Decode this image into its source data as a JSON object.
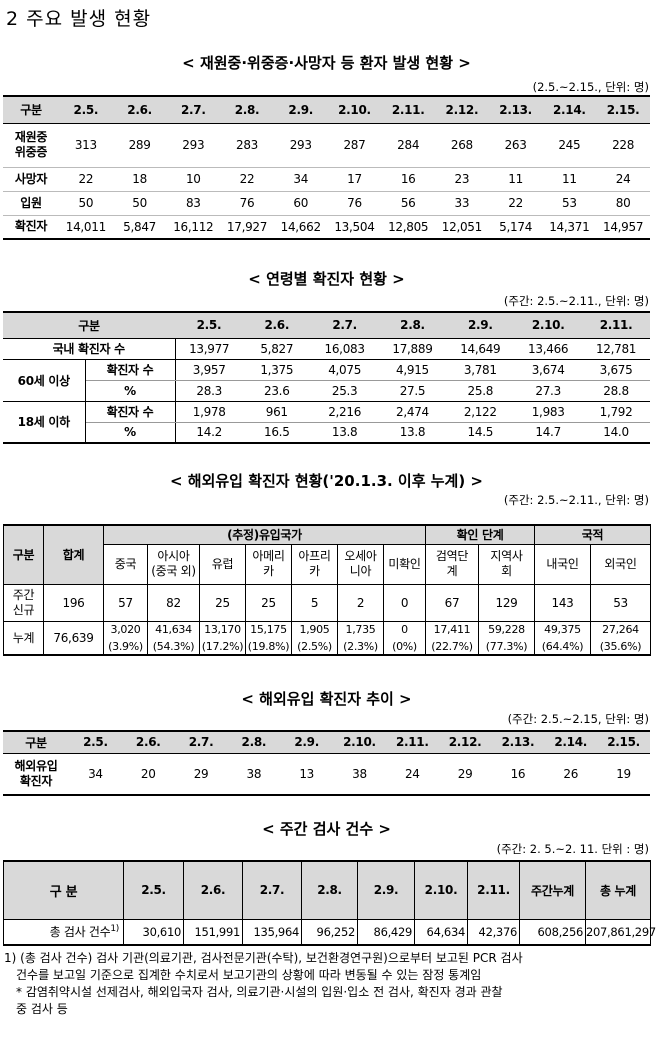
{
  "page_title": "2 주요 발생 현황",
  "t1": {
    "title": "< 재원중·위중증·사망자 등 환자 발생 현황 >",
    "unit": "(2.5.~2.15., 단위: 명)",
    "head": [
      "구분",
      "2.5.",
      "2.6.",
      "2.7.",
      "2.8.",
      "2.9.",
      "2.10.",
      "2.11.",
      "2.12.",
      "2.13.",
      "2.14.",
      "2.15."
    ],
    "rows": [
      {
        "label": "재원중\n위중증",
        "values": [
          "313",
          "289",
          "293",
          "283",
          "293",
          "287",
          "284",
          "268",
          "263",
          "245",
          "228"
        ]
      },
      {
        "label": "사망자",
        "values": [
          "22",
          "18",
          "10",
          "22",
          "34",
          "17",
          "16",
          "23",
          "11",
          "11",
          "24"
        ]
      },
      {
        "label": "입원",
        "values": [
          "50",
          "50",
          "83",
          "76",
          "60",
          "76",
          "56",
          "33",
          "22",
          "53",
          "80"
        ]
      },
      {
        "label": "확진자",
        "values": [
          "14,011",
          "5,847",
          "16,112",
          "17,927",
          "14,662",
          "13,504",
          "12,805",
          "12,051",
          "5,174",
          "14,371",
          "14,957"
        ]
      }
    ]
  },
  "t2": {
    "title": "< 연령별 확진자 현황 >",
    "unit": "(주간: 2.5.~2.11., 단위: 명)",
    "head": [
      "구분",
      "2.5.",
      "2.6.",
      "2.7.",
      "2.8.",
      "2.9.",
      "2.10.",
      "2.11."
    ],
    "total_label": "국내 확진자 수",
    "total": [
      "13,977",
      "5,827",
      "16,083",
      "17,889",
      "14,649",
      "13,466",
      "12,781"
    ],
    "g60_label": "60세 이상",
    "g18_label": "18세 이하",
    "sub_count": "확진자 수",
    "sub_pct": "%",
    "g60_count": [
      "3,957",
      "1,375",
      "4,075",
      "4,915",
      "3,781",
      "3,674",
      "3,675"
    ],
    "g60_pct": [
      "28.3",
      "23.6",
      "25.3",
      "27.5",
      "25.8",
      "27.3",
      "28.8"
    ],
    "g18_count": [
      "1,978",
      "961",
      "2,216",
      "2,474",
      "2,122",
      "1,983",
      "1,792"
    ],
    "g18_pct": [
      "14.2",
      "16.5",
      "13.8",
      "13.8",
      "14.5",
      "14.7",
      "14.0"
    ]
  },
  "t3": {
    "title": "< 해외유입 확진자 현황('20.1.3. 이후 누계) >",
    "unit": "(주간: 2.5.~2.11., 단위: 명)",
    "h_gubun": "구분",
    "h_total": "합계",
    "h_country": "(추정)유입국가",
    "h_stage": "확인 단계",
    "h_nation": "국적",
    "sub": [
      "중국",
      "아시아\n(중국 외)",
      "유럽",
      "아메리\n카",
      "아프리\n카",
      "오세아\n니아",
      "미확인",
      "검역단\n계",
      "지역사\n회",
      "내국인",
      "외국인"
    ],
    "week_label": "주간\n신규",
    "week_total": "196",
    "week": [
      "57",
      "82",
      "25",
      "25",
      "5",
      "2",
      "0",
      "67",
      "129",
      "143",
      "53"
    ],
    "cum_label": "누계",
    "cum_total": "76,639",
    "cum": [
      "3,020",
      "41,634",
      "13,170",
      "15,175",
      "1,905",
      "1,735",
      "0",
      "17,411",
      "59,228",
      "49,375",
      "27,264"
    ],
    "cum_pct": [
      "(3.9%)",
      "(54.3%)",
      "(17.2%)",
      "(19.8%)",
      "(2.5%)",
      "(2.3%)",
      "(0%)",
      "(22.7%)",
      "(77.3%)",
      "(64.4%)",
      "(35.6%)"
    ]
  },
  "t4": {
    "title": "< 해외유입 확진자 추이 >",
    "unit": "(주간: 2.5.~2.15, 단위: 명)",
    "head": [
      "구분",
      "2.5.",
      "2.6.",
      "2.7.",
      "2.8.",
      "2.9.",
      "2.10.",
      "2.11.",
      "2.12.",
      "2.13.",
      "2.14.",
      "2.15."
    ],
    "label": "해외유입\n확진자",
    "values": [
      "34",
      "20",
      "29",
      "38",
      "13",
      "38",
      "24",
      "29",
      "16",
      "26",
      "19"
    ]
  },
  "t5": {
    "title": "< 주간 검사 건수 >",
    "unit": "(주간: 2. 5.~2. 11. 단위 : 명)",
    "head": [
      "구 분",
      "2.5.",
      "2.6.",
      "2.7.",
      "2.8.",
      "2.9.",
      "2.10.",
      "2.11.",
      "주간누계",
      "총 누계"
    ],
    "label": "총 검사 건수",
    "label_sup": "1)",
    "values": [
      "30,610",
      "151,991",
      "135,964",
      "96,252",
      "86,429",
      "64,634",
      "42,376",
      "608,256",
      "207,861,297"
    ]
  },
  "footnote1": "1) (총 검사 건수) 검사 기관(의료기관, 검사전문기관(수탁), 보건환경연구원)으로부터 보고된 PCR 검사",
  "footnote1b": "건수를 보고일 기준으로 집계한 수치로서 보고기관의 상황에 따라 변동될 수 있는 잠정 통계임",
  "footnote2": "* 감염취약시설 선제검사, 해외입국자 검사, 의료기관·시설의 입원·입소 전 검사, 확진자 경과 관찰",
  "footnote2b": "중 검사 등"
}
